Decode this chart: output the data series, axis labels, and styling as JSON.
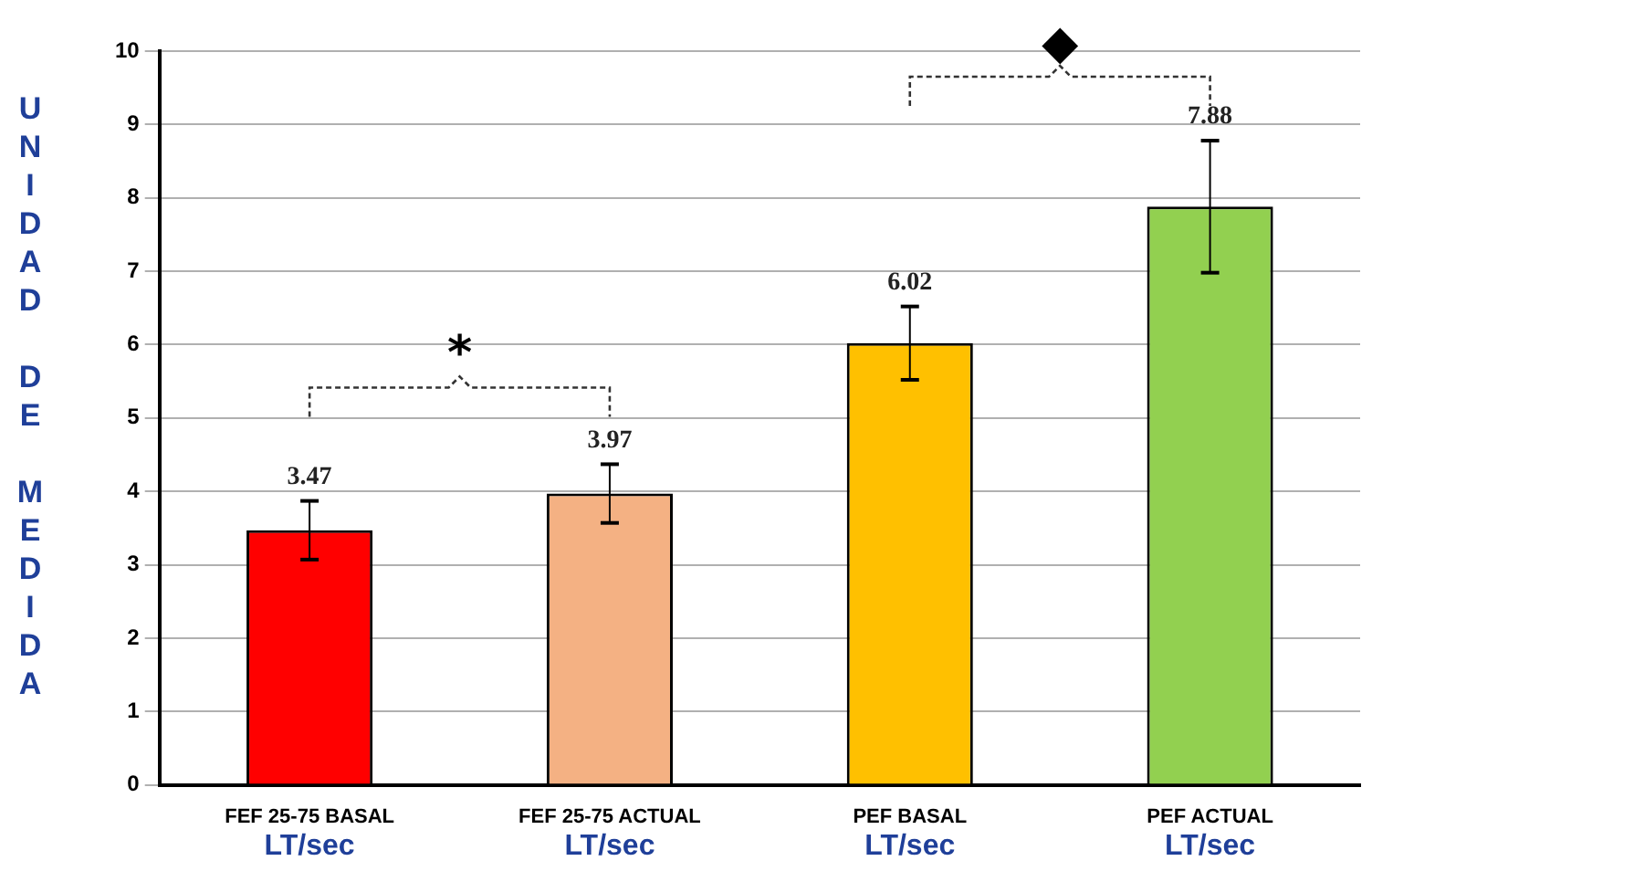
{
  "chart_data": {
    "type": "bar",
    "ylabel": "UNIDAD DE MEDIDA",
    "categories": [
      "FEF 25-75 BASAL",
      "FEF 25-75 ACTUAL",
      "PEF BASAL",
      "PEF ACTUAL"
    ],
    "values": [
      3.47,
      3.97,
      6.02,
      7.88
    ],
    "colors": [
      "#ff0000",
      "#f4b183",
      "#ffc000",
      "#92d050"
    ],
    "errors": [
      0.4,
      0.4,
      0.5,
      0.9
    ],
    "ylim": [
      0,
      10
    ],
    "yticks": [
      0,
      1,
      2,
      3,
      4,
      5,
      6,
      7,
      8,
      9,
      10
    ],
    "grid": "y",
    "legend": false,
    "data_labels": true,
    "annotations": [
      "*",
      "◆",
      "LT/sec",
      "LT/sec",
      "LT/sec",
      "LT/sec"
    ]
  }
}
